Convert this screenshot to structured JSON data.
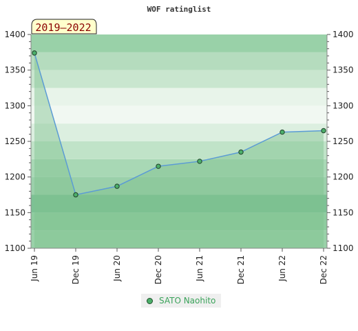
{
  "chart_data": {
    "type": "area",
    "title": "WOF ratinglist",
    "range_label": "2019–2022",
    "categories": [
      "Jun 19",
      "Dec 19",
      "Jun 20",
      "Dec 20",
      "Jun 21",
      "Dec 21",
      "Jun 22",
      "Dec 22"
    ],
    "series": [
      {
        "name": "SATO Naohito",
        "values": [
          1374,
          1175,
          1187,
          1215,
          1222,
          1235,
          1263,
          1265
        ]
      }
    ],
    "ylim": [
      1100,
      1400
    ],
    "yticks": [
      1100,
      1150,
      1200,
      1250,
      1300,
      1350,
      1400
    ],
    "grid": true,
    "legend": "bottom-center",
    "colors": {
      "line": "#5b9bd5",
      "fill": "#7fc28e",
      "marker": "#4caf6a",
      "band_colors": [
        "#99d1a8",
        "#8ecc9f",
        "#7dc194",
        "#9bd0aa",
        "#a8d8b5",
        "#c0e3c8",
        "#dcefe0",
        "#f1f8f2",
        "#e8f4ea",
        "#c9e6cf",
        "#b5dcbe"
      ],
      "legend_text": "#3aa35a",
      "range_text": "#8b0000",
      "range_bg": "#ffffcc"
    }
  }
}
